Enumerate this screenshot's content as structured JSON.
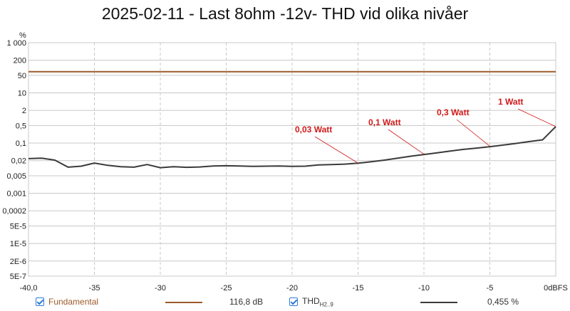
{
  "chart_data": {
    "type": "line",
    "title": "2025-02-11 - Last 8ohm -12v- THD vid olika nivåer",
    "ylabel": "%",
    "xlabel": "",
    "x_axis_unit": "dBFS",
    "xlim": [
      -40,
      0
    ],
    "x_ticks": [
      "-40,0",
      "-35",
      "-30",
      "-25",
      "-20",
      "-15",
      "-10",
      "-5",
      "0dBFS"
    ],
    "y_scale": "log",
    "ylim": [
      5e-07,
      1000
    ],
    "y_ticks": [
      "1 000",
      "200",
      "50",
      "10",
      "2",
      "0,5",
      "0,1",
      "0,02",
      "0,005",
      "0,001",
      "0,0002",
      "5E-5",
      "1E-5",
      "2E-6",
      "5E-7"
    ],
    "grid": true,
    "series": [
      {
        "name": "Fundamental",
        "color": "#9c5a2b",
        "x": [
          -40,
          0
        ],
        "y": [
          70,
          70
        ]
      },
      {
        "name": "THD",
        "color": "#3a3a3a",
        "x": [
          -40,
          -39,
          -38,
          -37,
          -36,
          -35,
          -34,
          -33,
          -32,
          -31,
          -30,
          -29,
          -28,
          -27,
          -26,
          -25,
          -24,
          -23,
          -22,
          -21,
          -20,
          -19,
          -18,
          -17,
          -16,
          -15,
          -14,
          -13,
          -12,
          -11,
          -10,
          -9,
          -8,
          -7,
          -6,
          -5,
          -4,
          -3,
          -2,
          -1,
          0
        ],
        "y": [
          0.024,
          0.025,
          0.021,
          0.011,
          0.012,
          0.016,
          0.013,
          0.0115,
          0.011,
          0.014,
          0.0105,
          0.0115,
          0.0108,
          0.0112,
          0.0122,
          0.0125,
          0.0122,
          0.0118,
          0.012,
          0.0123,
          0.0118,
          0.012,
          0.0135,
          0.014,
          0.0145,
          0.0158,
          0.018,
          0.021,
          0.025,
          0.03,
          0.035,
          0.041,
          0.048,
          0.056,
          0.063,
          0.072,
          0.083,
          0.097,
          0.115,
          0.135,
          0.455
        ]
      }
    ],
    "annotations": [
      {
        "text": "0,03 Watt",
        "x": -15,
        "y": 0.016,
        "color": "#d11a1a"
      },
      {
        "text": "0,1 Watt",
        "x": -10,
        "y": 0.036,
        "color": "#d11a1a"
      },
      {
        "text": "0,3 Watt",
        "x": -5,
        "y": 0.075,
        "color": "#d11a1a"
      },
      {
        "text": "1 Watt",
        "x": 0,
        "y": 0.455,
        "color": "#d11a1a"
      }
    ]
  },
  "legend": {
    "fundamental_label": "Fundamental",
    "fundamental_value": "116,8 dB",
    "thd_label": "THD",
    "thd_sub": "H2..9",
    "thd_value": "0,455 %"
  }
}
